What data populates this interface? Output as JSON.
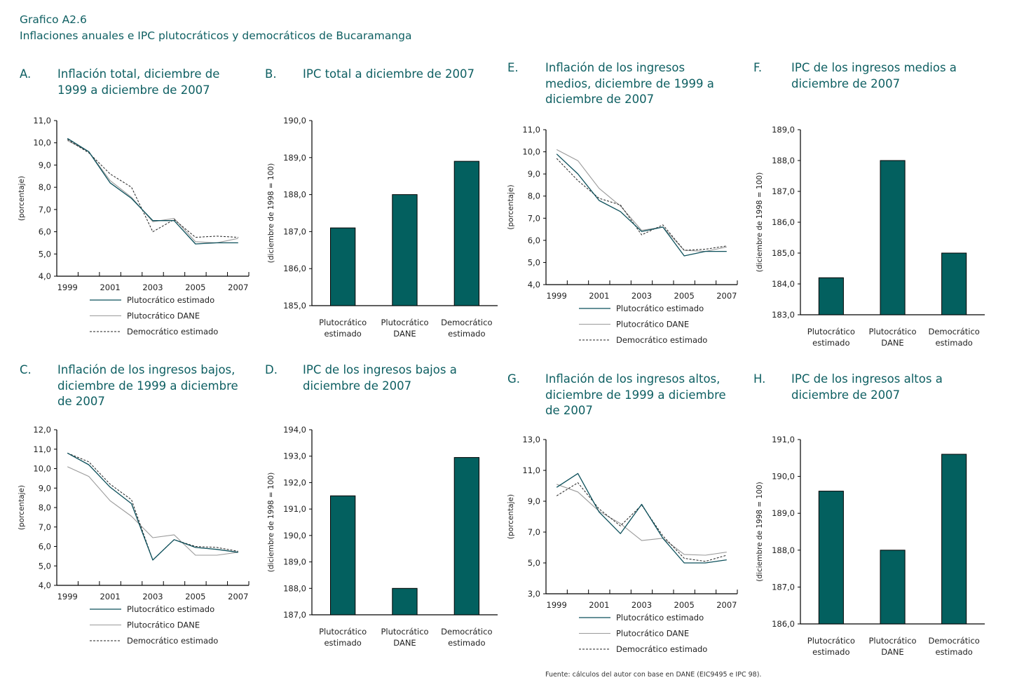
{
  "figure": {
    "number": "Grafico A2.6",
    "title": "Inflaciones anuales e IPC plutocráticos y democráticos de Bucaramanga",
    "source": "Fuente: cálculos del autor con base en DANE (EIC9495 e IPC 98).",
    "colors": {
      "title": "#0e5f62",
      "bar": "#03605f",
      "series_estimado": "#0b4f5a",
      "series_dane": "#9a9a9a",
      "series_democratico": "#222222"
    }
  },
  "panels": {
    "A": {
      "letter": "A.",
      "title": "Inflación total, diciembre de 1999 a diciembre de 2007"
    },
    "B": {
      "letter": "B.",
      "title": "IPC total a diciembre de 2007"
    },
    "C": {
      "letter": "C.",
      "title": "Inflación de los ingresos bajos, diciembre de 1999 a diciembre de 2007"
    },
    "D": {
      "letter": "D.",
      "title": "IPC de los ingresos bajos a diciembre de 2007"
    },
    "E": {
      "letter": "E.",
      "title": "Inflación de los ingresos medios, diciembre de 1999 a diciembre de 2007"
    },
    "F": {
      "letter": "F.",
      "title": "IPC de los ingresos medios a diciembre de 2007"
    },
    "G": {
      "letter": "G.",
      "title": "Inflación de los ingresos altos, diciembre de 1999 a diciembre de 2007"
    },
    "H": {
      "letter": "H.",
      "title": "IPC de los ingresos altos a diciembre de 2007"
    }
  },
  "chart_data": [
    {
      "id": "A",
      "type": "line",
      "title": "Inflación total, diciembre de 1999 a diciembre de 2007",
      "xlabel": "",
      "ylabel": "(porcentaje)",
      "x": [
        1999,
        2000,
        2001,
        2002,
        2003,
        2004,
        2005,
        2006,
        2007
      ],
      "x_tick_labels": [
        "1999",
        "",
        "2001",
        "",
        "2003",
        "",
        "2005",
        "",
        "2007"
      ],
      "ylim": [
        4,
        11
      ],
      "y_ticks": [
        4,
        5,
        6,
        7,
        8,
        9,
        10,
        11
      ],
      "y_tick_labels": [
        "4,0",
        "5,0",
        "6,0",
        "7,0",
        "8,0",
        "9,0",
        "10,0",
        "11,0"
      ],
      "grid": false,
      "legend": "bottom",
      "series": [
        {
          "name": "Plutocrático estimado",
          "style": "solid-dark",
          "values": [
            10.2,
            9.6,
            8.2,
            7.5,
            6.5,
            6.5,
            5.45,
            5.5,
            5.5
          ]
        },
        {
          "name": "Plutocrático DANE",
          "style": "solid-gray",
          "values": [
            10.1,
            9.6,
            8.3,
            7.55,
            6.45,
            6.6,
            5.55,
            5.5,
            5.7
          ]
        },
        {
          "name": "Democrático estimado",
          "style": "dashed",
          "values": [
            10.15,
            9.55,
            8.6,
            8.0,
            6.0,
            6.55,
            5.75,
            5.8,
            5.75
          ]
        }
      ]
    },
    {
      "id": "B",
      "type": "bar",
      "title": "IPC total a diciembre de 2007",
      "xlabel": "",
      "ylabel": "(diciembre de 1998 = 100)",
      "categories": [
        "Plutocrático estimado",
        "Plutocrático DANE",
        "Democrático estimado"
      ],
      "category_lines": [
        [
          "Plutocrático",
          "estimado"
        ],
        [
          "Plutocrático",
          "DANE"
        ],
        [
          "Democrático",
          "estimado"
        ]
      ],
      "values": [
        187.1,
        188.0,
        188.9
      ],
      "ylim": [
        185,
        190
      ],
      "y_ticks": [
        185,
        186,
        187,
        188,
        189,
        190
      ],
      "y_tick_labels": [
        "185,0",
        "186,0",
        "187,0",
        "188,0",
        "189,0",
        "190,0"
      ],
      "grid": false
    },
    {
      "id": "C",
      "type": "line",
      "title": "Inflación de los ingresos bajos, diciembre de 1999 a diciembre de 2007",
      "xlabel": "",
      "ylabel": "(porcentaje)",
      "x": [
        1999,
        2000,
        2001,
        2002,
        2003,
        2004,
        2005,
        2006,
        2007
      ],
      "x_tick_labels": [
        "1999",
        "",
        "2001",
        "",
        "2003",
        "",
        "2005",
        "",
        "2007"
      ],
      "ylim": [
        4,
        12
      ],
      "y_ticks": [
        4,
        5,
        6,
        7,
        8,
        9,
        10,
        11,
        12
      ],
      "y_tick_labels": [
        "4,0",
        "5,0",
        "6,0",
        "7,0",
        "8,0",
        "9,0",
        "10,0",
        "11,0",
        "12,0"
      ],
      "grid": false,
      "legend": "bottom",
      "series": [
        {
          "name": "Plutocrático estimado",
          "style": "solid-dark",
          "values": [
            10.8,
            10.2,
            9.05,
            8.2,
            5.3,
            6.35,
            5.95,
            5.85,
            5.7
          ]
        },
        {
          "name": "Plutocrático DANE",
          "style": "solid-gray",
          "values": [
            10.1,
            9.6,
            8.35,
            7.55,
            6.45,
            6.6,
            5.55,
            5.55,
            5.7
          ]
        },
        {
          "name": "Democrático estimado",
          "style": "dashed",
          "values": [
            10.8,
            10.35,
            9.2,
            8.4,
            5.3,
            6.35,
            6.0,
            5.95,
            5.75
          ]
        }
      ]
    },
    {
      "id": "D",
      "type": "bar",
      "title": "IPC de los ingresos bajos a diciembre de 2007",
      "xlabel": "",
      "ylabel": "(diciembre de 1998 = 100)",
      "categories": [
        "Plutocrático estimado",
        "Plutocrático DANE",
        "Democrático estimado"
      ],
      "category_lines": [
        [
          "Plutocrático",
          "estimado"
        ],
        [
          "Plutocrático",
          "DANE"
        ],
        [
          "Democrático",
          "estimado"
        ]
      ],
      "values": [
        191.5,
        188.0,
        192.95
      ],
      "ylim": [
        187,
        194
      ],
      "y_ticks": [
        187,
        188,
        189,
        190,
        191,
        192,
        193,
        194
      ],
      "y_tick_labels": [
        "187,0",
        "188,0",
        "189,0",
        "190,0",
        "191,0",
        "192,0",
        "193,0",
        "194,0"
      ],
      "grid": false
    },
    {
      "id": "E",
      "type": "line",
      "title": "Inflación de los ingresos medios, diciembre de 1999 a diciembre de 2007",
      "xlabel": "",
      "ylabel": "(porcentaje)",
      "x": [
        1999,
        2000,
        2001,
        2002,
        2003,
        2004,
        2005,
        2006,
        2007
      ],
      "x_tick_labels": [
        "1999",
        "",
        "2001",
        "",
        "2003",
        "",
        "2005",
        "",
        "2007"
      ],
      "ylim": [
        4,
        11
      ],
      "y_ticks": [
        4,
        5,
        6,
        7,
        8,
        9,
        10,
        11
      ],
      "y_tick_labels": [
        "4,0",
        "5,0",
        "6,0",
        "7,0",
        "8,0",
        "9,0",
        "10,0",
        "11,0"
      ],
      "grid": false,
      "legend": "bottom",
      "series": [
        {
          "name": "Plutocrático estimado",
          "style": "solid-dark",
          "values": [
            9.9,
            9.0,
            7.8,
            7.3,
            6.4,
            6.6,
            5.3,
            5.5,
            5.5
          ]
        },
        {
          "name": "Plutocrático DANE",
          "style": "solid-gray",
          "values": [
            10.1,
            9.6,
            8.35,
            7.55,
            6.45,
            6.6,
            5.55,
            5.5,
            5.7
          ]
        },
        {
          "name": "Democrático estimado",
          "style": "dashed",
          "values": [
            9.7,
            8.7,
            7.9,
            7.6,
            6.25,
            6.7,
            5.55,
            5.6,
            5.75
          ]
        }
      ]
    },
    {
      "id": "F",
      "type": "bar",
      "title": "IPC de los ingresos medios a diciembre de 2007",
      "xlabel": "",
      "ylabel": "(diciembre de 1998 = 100)",
      "categories": [
        "Plutocrático estimado",
        "Plutocrático DANE",
        "Democrático estimado"
      ],
      "category_lines": [
        [
          "Plutocrático",
          "estimado"
        ],
        [
          "Plutocrático",
          "DANE"
        ],
        [
          "Democrático",
          "estimado"
        ]
      ],
      "values": [
        184.2,
        188.0,
        185.0
      ],
      "ylim": [
        183,
        189
      ],
      "y_ticks": [
        183,
        184,
        185,
        186,
        187,
        188,
        189
      ],
      "y_tick_labels": [
        "183,0",
        "184,0",
        "185,0",
        "186,0",
        "187,0",
        "188,0",
        "189,0"
      ],
      "grid": false
    },
    {
      "id": "G",
      "type": "line",
      "title": "Inflación de los ingresos altos, diciembre de 1999 a diciembre de 2007",
      "xlabel": "",
      "ylabel": "(porcentaje)",
      "x": [
        1999,
        2000,
        2001,
        2002,
        2003,
        2004,
        2005,
        2006,
        2007
      ],
      "x_tick_labels": [
        "1999",
        "",
        "2001",
        "",
        "2003",
        "",
        "2005",
        "",
        "2007"
      ],
      "ylim": [
        3,
        13
      ],
      "y_ticks": [
        3,
        5,
        7,
        9,
        11,
        13
      ],
      "y_tick_labels": [
        "3,0",
        "5,0",
        "7,0",
        "9,0",
        "11,0",
        "13,0"
      ],
      "grid": false,
      "legend": "bottom",
      "series": [
        {
          "name": "Plutocrático estimado",
          "style": "solid-dark",
          "values": [
            9.9,
            10.8,
            8.3,
            6.9,
            8.8,
            6.6,
            5.0,
            5.0,
            5.2
          ]
        },
        {
          "name": "Plutocrático DANE",
          "style": "solid-gray",
          "values": [
            10.1,
            9.6,
            8.35,
            7.55,
            6.45,
            6.6,
            5.55,
            5.5,
            5.7
          ]
        },
        {
          "name": "Democrático estimado",
          "style": "dashed",
          "values": [
            9.35,
            10.2,
            8.5,
            7.4,
            8.75,
            6.75,
            5.3,
            5.1,
            5.5
          ]
        }
      ]
    },
    {
      "id": "H",
      "type": "bar",
      "title": "IPC de los ingresos altos a diciembre de 2007",
      "xlabel": "",
      "ylabel": "(diciembre de 1998 = 100)",
      "categories": [
        "Plutocrático estimado",
        "Plutocrático DANE",
        "Democrático estimado"
      ],
      "category_lines": [
        [
          "Plutocrático",
          "estimado"
        ],
        [
          "Plutocrático",
          "DANE"
        ],
        [
          "Democrático",
          "estimado"
        ]
      ],
      "values": [
        189.6,
        188.0,
        190.6
      ],
      "ylim": [
        186,
        191
      ],
      "y_ticks": [
        186,
        187,
        188,
        189,
        190,
        191
      ],
      "y_tick_labels": [
        "186,0",
        "187,0",
        "188,0",
        "189,0",
        "190,0",
        "191,0"
      ],
      "grid": false
    }
  ]
}
